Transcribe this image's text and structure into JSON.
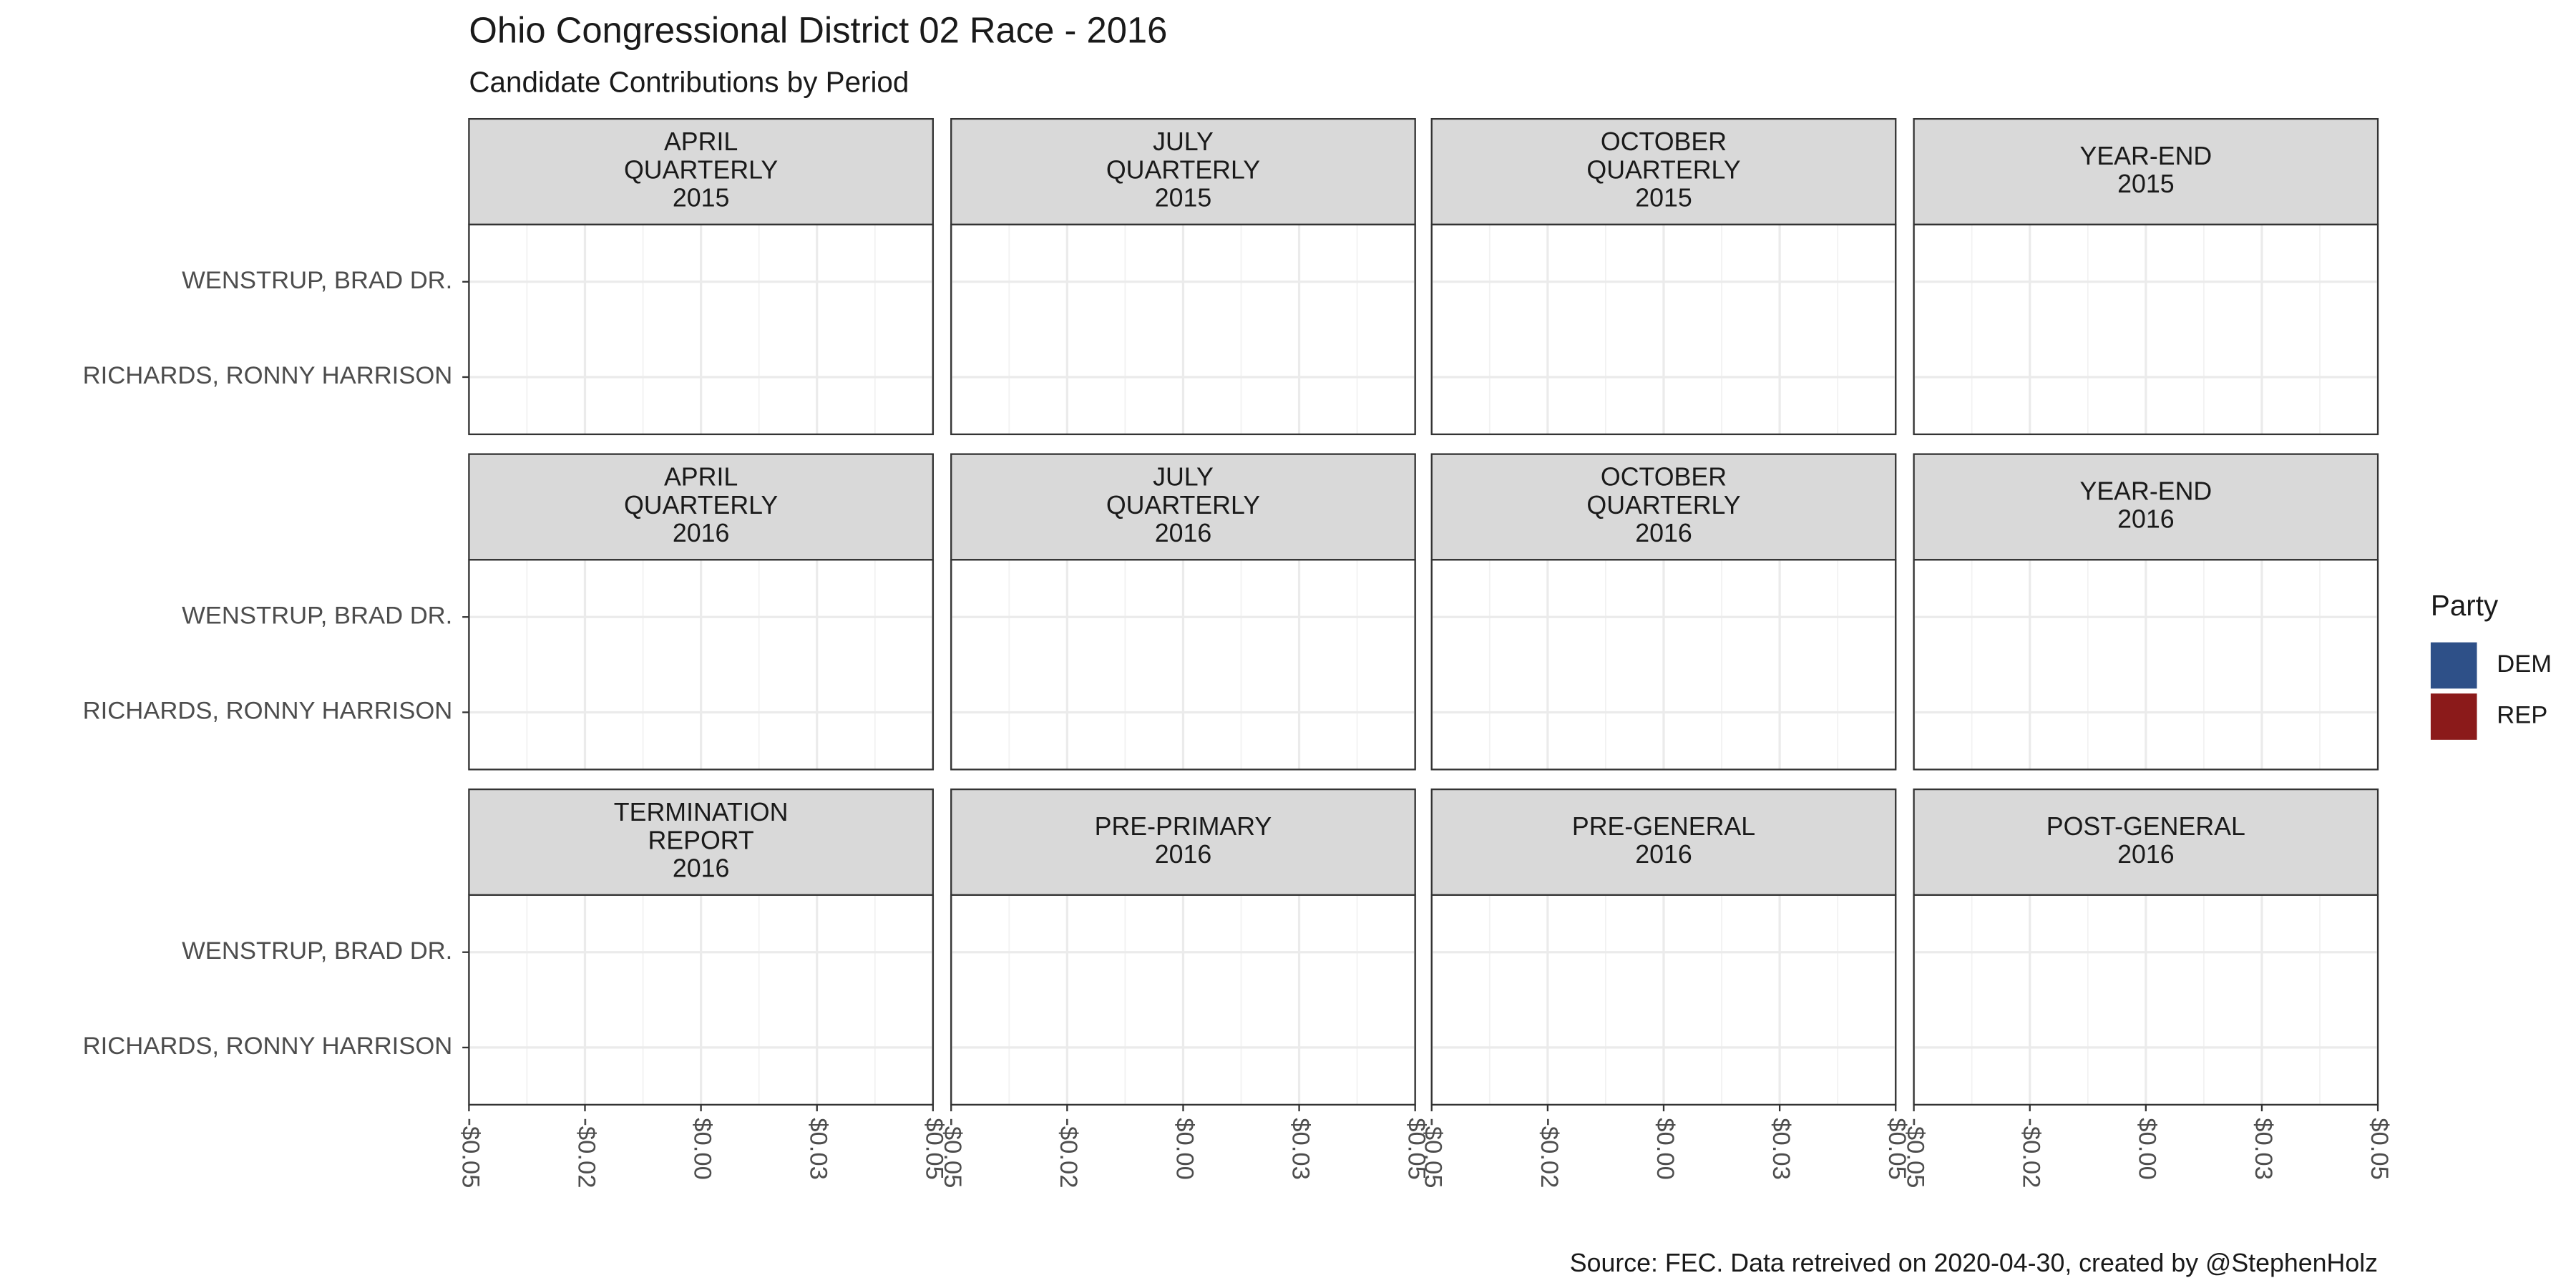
{
  "chart_data": {
    "type": "bar",
    "title": "Ohio Congressional District 02 Race - 2016",
    "subtitle": "Candidate Contributions by Period",
    "caption": "Source: FEC. Data retreived on 2020-04-30, created by @StephenHolz",
    "facets": [
      [
        "APRIL",
        "QUARTERLY",
        "2015"
      ],
      [
        "JULY",
        "QUARTERLY",
        "2015"
      ],
      [
        "OCTOBER",
        "QUARTERLY",
        "2015"
      ],
      [
        "YEAR-END",
        "2015"
      ],
      [
        "APRIL",
        "QUARTERLY",
        "2016"
      ],
      [
        "JULY",
        "QUARTERLY",
        "2016"
      ],
      [
        "OCTOBER",
        "QUARTERLY",
        "2016"
      ],
      [
        "YEAR-END",
        "2016"
      ],
      [
        "TERMINATION",
        "REPORT",
        "2016"
      ],
      [
        "PRE-PRIMARY",
        "2016"
      ],
      [
        "PRE-GENERAL",
        "2016"
      ],
      [
        "POST-GENERAL",
        "2016"
      ]
    ],
    "categories": [
      "RICHARDS, RONNY HARRISON",
      "WENSTRUP, BRAD DR."
    ],
    "legend_title": "Party",
    "series": [
      {
        "name": "DEM",
        "color": "#2e5088"
      },
      {
        "name": "REP",
        "color": "#8b1a1a"
      }
    ],
    "xlim": [
      -0.05,
      0.05
    ],
    "xticks": [
      {
        "value": -0.05,
        "label": "-$0.05"
      },
      {
        "value": -0.025,
        "label": "-$0.02"
      },
      {
        "value": 0,
        "label": "$0.00"
      },
      {
        "value": 0.025,
        "label": "$0.03"
      },
      {
        "value": 0.05,
        "label": "$0.05"
      }
    ],
    "grid": true,
    "legend": "right"
  }
}
